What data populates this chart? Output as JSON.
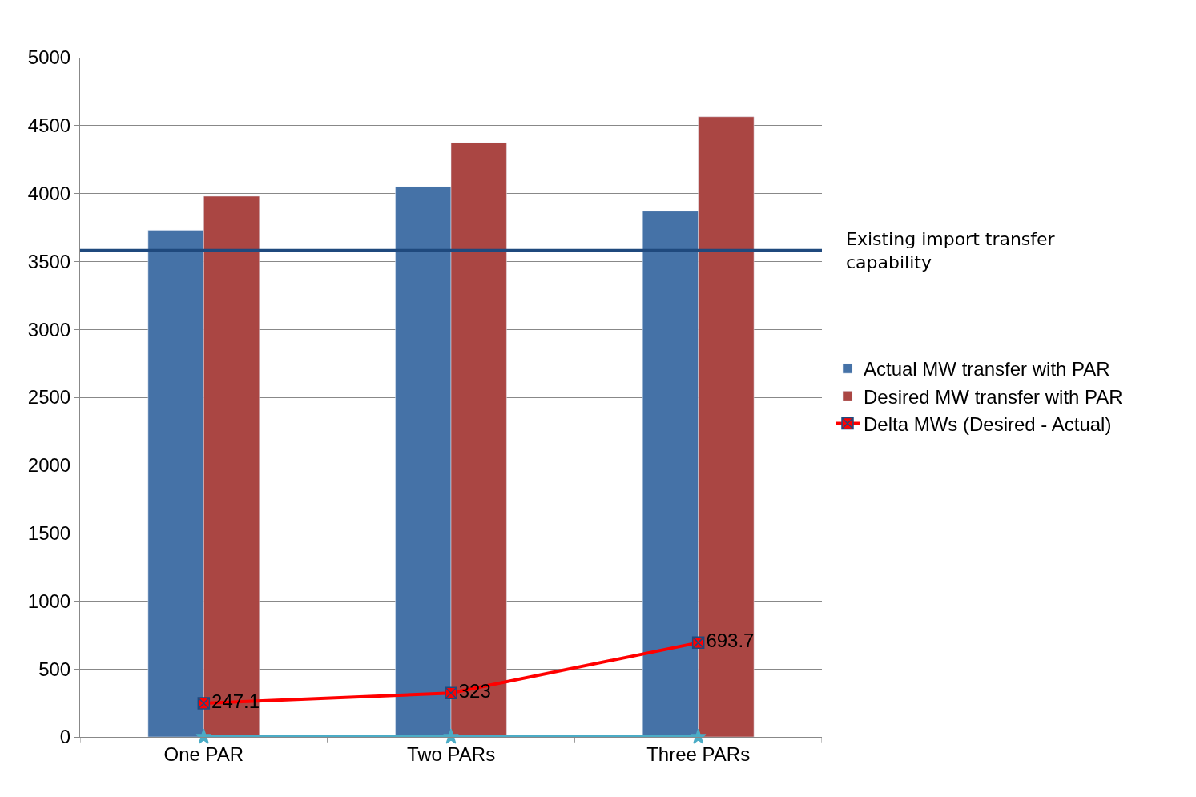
{
  "chart_data": {
    "type": "bar",
    "categories": [
      "One PAR",
      "Two PARs",
      "Three PARs"
    ],
    "series": [
      {
        "name": "Actual MW transfer with PAR",
        "color": "#4572a7",
        "values": [
          3730,
          4050,
          3870
        ]
      },
      {
        "name": "Desired MW transfer with PAR",
        "color": "#aa4643",
        "values": [
          3980,
          4375,
          4565
        ]
      },
      {
        "name": "Delta MWs (Desired - Actual)",
        "type": "line",
        "color": "#ff0000",
        "marker": "cross",
        "values": [
          247.1,
          323,
          693.7
        ],
        "value_labels": [
          "247.1",
          "323",
          "693.7"
        ]
      },
      {
        "type": "line",
        "color": "#4bacc6",
        "marker": "star",
        "values": [
          0,
          0,
          0
        ]
      }
    ],
    "ylim": [
      0,
      5000
    ],
    "yticks": [
      0,
      500,
      1000,
      1500,
      2000,
      2500,
      3000,
      3500,
      4000,
      4500,
      5000
    ],
    "ref_lines": [
      {
        "axis": "y",
        "value": 3580,
        "label": "Existing import transfer capability",
        "color": "#1f497d"
      }
    ],
    "grid": "y",
    "legend": "right"
  }
}
